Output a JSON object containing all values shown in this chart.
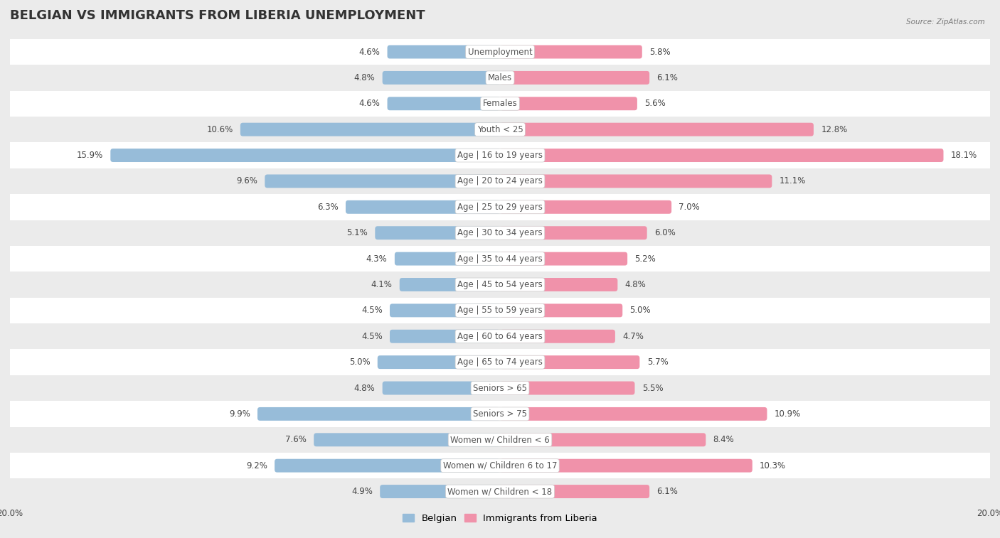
{
  "title": "BELGIAN VS IMMIGRANTS FROM LIBERIA UNEMPLOYMENT",
  "source": "Source: ZipAtlas.com",
  "categories": [
    "Unemployment",
    "Males",
    "Females",
    "Youth < 25",
    "Age | 16 to 19 years",
    "Age | 20 to 24 years",
    "Age | 25 to 29 years",
    "Age | 30 to 34 years",
    "Age | 35 to 44 years",
    "Age | 45 to 54 years",
    "Age | 55 to 59 years",
    "Age | 60 to 64 years",
    "Age | 65 to 74 years",
    "Seniors > 65",
    "Seniors > 75",
    "Women w/ Children < 6",
    "Women w/ Children 6 to 17",
    "Women w/ Children < 18"
  ],
  "belgian": [
    4.6,
    4.8,
    4.6,
    10.6,
    15.9,
    9.6,
    6.3,
    5.1,
    4.3,
    4.1,
    4.5,
    4.5,
    5.0,
    4.8,
    9.9,
    7.6,
    9.2,
    4.9
  ],
  "liberia": [
    5.8,
    6.1,
    5.6,
    12.8,
    18.1,
    11.1,
    7.0,
    6.0,
    5.2,
    4.8,
    5.0,
    4.7,
    5.7,
    5.5,
    10.9,
    8.4,
    10.3,
    6.1
  ],
  "belgian_color": "#97bcd9",
  "liberia_color": "#f092aa",
  "background_color": "#ebebeb",
  "row_color_even": "#ffffff",
  "row_color_odd": "#ebebeb",
  "max_val": 20.0,
  "bar_height": 0.52,
  "title_fontsize": 13,
  "label_fontsize": 8.5,
  "legend_fontsize": 9.5,
  "value_fontsize": 8.5
}
